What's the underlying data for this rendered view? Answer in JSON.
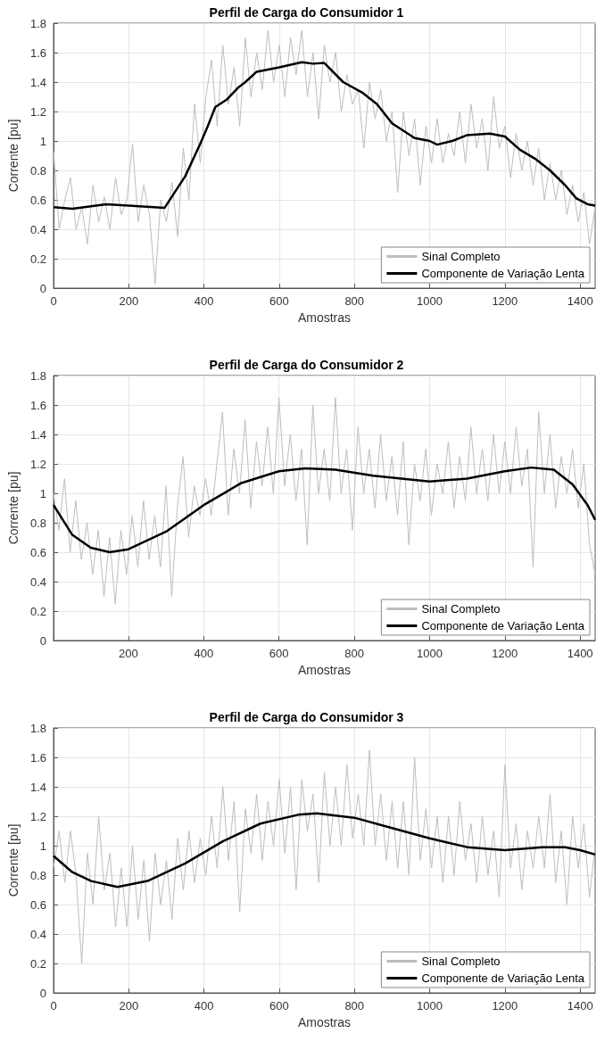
{
  "chart_data": [
    {
      "type": "line",
      "title": "Perfil de Carga do Consumidor 1",
      "xlabel": "Amostras",
      "ylabel": "Corrente [pu]",
      "xlim": [
        0,
        1440
      ],
      "xticks": [
        0,
        200,
        400,
        600,
        800,
        1000,
        1200,
        1400
      ],
      "ylim": [
        0,
        1.8
      ],
      "yticks": [
        0,
        0.2,
        0.4,
        0.6,
        0.8,
        1,
        1.2,
        1.4,
        1.6,
        1.8
      ],
      "grid": true,
      "legend": "bottom right",
      "marker": "none",
      "series": [
        {
          "name": "Sinal Completo",
          "color": "#bdbdbd",
          "x": [
            0,
            15,
            30,
            45,
            60,
            75,
            90,
            105,
            120,
            135,
            150,
            165,
            180,
            195,
            210,
            225,
            240,
            255,
            270,
            285,
            300,
            315,
            330,
            345,
            360,
            375,
            390,
            405,
            420,
            435,
            450,
            465,
            480,
            495,
            510,
            525,
            540,
            555,
            570,
            585,
            600,
            615,
            630,
            645,
            660,
            675,
            690,
            705,
            720,
            735,
            750,
            765,
            780,
            795,
            810,
            825,
            840,
            855,
            870,
            885,
            900,
            915,
            930,
            945,
            960,
            975,
            990,
            1005,
            1020,
            1035,
            1050,
            1065,
            1080,
            1095,
            1110,
            1125,
            1140,
            1155,
            1170,
            1185,
            1200,
            1215,
            1230,
            1245,
            1260,
            1275,
            1290,
            1305,
            1320,
            1335,
            1350,
            1365,
            1380,
            1395,
            1410,
            1425,
            1440
          ],
          "values": [
            0.93,
            0.4,
            0.6,
            0.75,
            0.4,
            0.55,
            0.3,
            0.7,
            0.45,
            0.62,
            0.4,
            0.75,
            0.5,
            0.6,
            0.98,
            0.45,
            0.7,
            0.5,
            0.03,
            0.6,
            0.45,
            0.72,
            0.35,
            0.95,
            0.6,
            1.25,
            0.85,
            1.3,
            1.55,
            1.1,
            1.65,
            1.25,
            1.5,
            1.1,
            1.7,
            1.3,
            1.6,
            1.35,
            1.75,
            1.4,
            1.65,
            1.3,
            1.7,
            1.45,
            1.75,
            1.3,
            1.6,
            1.15,
            1.65,
            1.4,
            1.6,
            1.2,
            1.45,
            1.25,
            1.35,
            0.95,
            1.4,
            1.15,
            1.35,
            1.0,
            1.2,
            0.65,
            1.2,
            0.9,
            1.15,
            0.7,
            1.1,
            0.85,
            1.15,
            0.85,
            1.05,
            0.9,
            1.2,
            0.85,
            1.25,
            0.95,
            1.15,
            0.8,
            1.3,
            0.95,
            1.1,
            0.75,
            1.05,
            0.8,
            1.0,
            0.7,
            0.95,
            0.6,
            0.85,
            0.6,
            0.8,
            0.5,
            0.7,
            0.45,
            0.65,
            0.3,
            0.55
          ]
        },
        {
          "name": "Componente de Variação Lenta",
          "color": "#000000",
          "x": [
            0,
            50,
            140,
            200,
            295,
            350,
            390,
            410,
            430,
            460,
            490,
            510,
            540,
            600,
            660,
            690,
            720,
            770,
            820,
            860,
            900,
            960,
            1000,
            1020,
            1060,
            1100,
            1160,
            1200,
            1240,
            1280,
            1320,
            1360,
            1390,
            1420,
            1440
          ],
          "values": [
            0.55,
            0.54,
            0.57,
            0.56,
            0.545,
            0.76,
            0.98,
            1.1,
            1.23,
            1.28,
            1.36,
            1.4,
            1.47,
            1.5,
            1.535,
            1.525,
            1.53,
            1.4,
            1.33,
            1.25,
            1.12,
            1.02,
            1.0,
            0.975,
            1.0,
            1.04,
            1.05,
            1.03,
            0.94,
            0.88,
            0.8,
            0.7,
            0.61,
            0.57,
            0.56
          ]
        }
      ]
    },
    {
      "type": "line",
      "title": "Perfil de Carga do Consumidor 2",
      "xlabel": "Amostras",
      "ylabel": "Corrente [pu]",
      "xlim": [
        1,
        1440
      ],
      "xticks": [
        200,
        400,
        600,
        800,
        1000,
        1200,
        1400
      ],
      "ylim": [
        0,
        1.8
      ],
      "yticks": [
        0,
        0.2,
        0.4,
        0.6,
        0.8,
        1,
        1.2,
        1.4,
        1.6,
        1.8
      ],
      "grid": true,
      "legend": "bottom right",
      "marker": "none",
      "series": [
        {
          "name": "Sinal Completo",
          "color": "#bdbdbd",
          "x": [
            1,
            15,
            30,
            45,
            60,
            75,
            90,
            105,
            120,
            135,
            150,
            165,
            180,
            195,
            210,
            225,
            240,
            255,
            270,
            285,
            300,
            315,
            330,
            345,
            360,
            375,
            390,
            405,
            420,
            435,
            450,
            465,
            480,
            495,
            510,
            525,
            540,
            555,
            570,
            585,
            600,
            615,
            630,
            645,
            660,
            675,
            690,
            705,
            720,
            735,
            750,
            765,
            780,
            795,
            810,
            825,
            840,
            855,
            870,
            885,
            900,
            915,
            930,
            945,
            960,
            975,
            990,
            1005,
            1020,
            1035,
            1050,
            1065,
            1080,
            1095,
            1110,
            1125,
            1140,
            1155,
            1170,
            1185,
            1200,
            1215,
            1230,
            1245,
            1260,
            1275,
            1290,
            1305,
            1320,
            1335,
            1350,
            1365,
            1380,
            1395,
            1410,
            1425,
            1440
          ],
          "values": [
            1.0,
            0.75,
            1.1,
            0.6,
            0.95,
            0.55,
            0.8,
            0.45,
            0.75,
            0.3,
            0.7,
            0.25,
            0.75,
            0.45,
            0.85,
            0.5,
            0.95,
            0.55,
            0.85,
            0.5,
            1.05,
            0.3,
            0.9,
            1.25,
            0.7,
            1.05,
            0.85,
            1.1,
            0.85,
            1.2,
            1.55,
            0.85,
            1.3,
            1.0,
            1.5,
            0.9,
            1.35,
            1.05,
            1.45,
            1.0,
            1.65,
            1.05,
            1.4,
            0.95,
            1.3,
            0.65,
            1.6,
            1.0,
            1.3,
            0.95,
            1.65,
            1.0,
            1.3,
            0.75,
            1.45,
            1.0,
            1.3,
            0.9,
            1.4,
            0.95,
            1.25,
            0.85,
            1.35,
            0.65,
            1.2,
            0.95,
            1.3,
            0.85,
            1.2,
            1.0,
            1.35,
            0.9,
            1.25,
            0.95,
            1.45,
            1.0,
            1.3,
            0.95,
            1.4,
            1.0,
            1.35,
            1.0,
            1.45,
            1.05,
            1.3,
            0.5,
            1.55,
            1.0,
            1.4,
            0.9,
            1.25,
            1.0,
            1.3,
            0.9,
            1.2,
            0.65,
            0.45
          ]
        },
        {
          "name": "Componente de Variação Lenta",
          "color": "#000000",
          "x": [
            1,
            50,
            100,
            150,
            200,
            300,
            400,
            500,
            600,
            670,
            750,
            850,
            1000,
            1100,
            1200,
            1270,
            1330,
            1380,
            1420,
            1440
          ],
          "values": [
            0.92,
            0.72,
            0.63,
            0.6,
            0.62,
            0.74,
            0.92,
            1.07,
            1.15,
            1.17,
            1.16,
            1.12,
            1.08,
            1.1,
            1.15,
            1.175,
            1.16,
            1.06,
            0.92,
            0.82
          ]
        }
      ]
    },
    {
      "type": "line",
      "title": "Perfil de Carga do Consumidor 3",
      "xlabel": "Amostras",
      "ylabel": "Corrente [pu]",
      "xlim": [
        0,
        1440
      ],
      "xticks": [
        0,
        200,
        400,
        600,
        800,
        1000,
        1200,
        1400
      ],
      "ylim": [
        0,
        1.8
      ],
      "yticks": [
        0,
        0.2,
        0.4,
        0.6,
        0.8,
        1,
        1.2,
        1.4,
        1.6,
        1.8
      ],
      "grid": true,
      "legend": "bottom right",
      "marker": "none",
      "series": [
        {
          "name": "Sinal Completo",
          "color": "#bdbdbd",
          "x": [
            0,
            15,
            30,
            45,
            60,
            75,
            90,
            105,
            120,
            135,
            150,
            165,
            180,
            195,
            210,
            225,
            240,
            255,
            270,
            285,
            300,
            315,
            330,
            345,
            360,
            375,
            390,
            405,
            420,
            435,
            450,
            465,
            480,
            495,
            510,
            525,
            540,
            555,
            570,
            585,
            600,
            615,
            630,
            645,
            660,
            675,
            690,
            705,
            720,
            735,
            750,
            765,
            780,
            795,
            810,
            825,
            840,
            855,
            870,
            885,
            900,
            915,
            930,
            945,
            960,
            975,
            990,
            1005,
            1020,
            1035,
            1050,
            1065,
            1080,
            1095,
            1110,
            1125,
            1140,
            1155,
            1170,
            1185,
            1200,
            1215,
            1230,
            1245,
            1260,
            1275,
            1290,
            1305,
            1320,
            1335,
            1350,
            1365,
            1380,
            1395,
            1410,
            1425,
            1440
          ],
          "values": [
            0.85,
            1.1,
            0.75,
            1.1,
            0.8,
            0.2,
            0.95,
            0.6,
            1.2,
            0.7,
            0.95,
            0.45,
            0.85,
            0.45,
            1.0,
            0.5,
            0.9,
            0.35,
            0.95,
            0.6,
            0.9,
            0.5,
            1.05,
            0.7,
            1.1,
            0.75,
            1.05,
            0.8,
            1.2,
            0.85,
            1.4,
            0.9,
            1.3,
            0.55,
            1.25,
            0.95,
            1.35,
            0.9,
            1.3,
            1.0,
            1.45,
            0.95,
            1.4,
            0.7,
            1.45,
            1.1,
            1.35,
            0.75,
            1.5,
            1.0,
            1.4,
            1.0,
            1.55,
            1.05,
            1.35,
            1.0,
            1.65,
            1.0,
            1.35,
            0.9,
            1.3,
            0.85,
            1.3,
            0.8,
            1.6,
            0.9,
            1.25,
            0.85,
            1.2,
            0.75,
            1.2,
            0.8,
            1.3,
            0.9,
            1.15,
            0.75,
            1.2,
            0.8,
            1.1,
            0.65,
            1.55,
            0.85,
            1.15,
            0.7,
            1.1,
            0.85,
            1.2,
            0.85,
            1.35,
            0.75,
            1.1,
            0.6,
            1.2,
            0.85,
            1.15,
            0.65,
            1.0
          ]
        },
        {
          "name": "Componente de Variação Lenta",
          "color": "#000000",
          "x": [
            0,
            50,
            100,
            170,
            250,
            350,
            450,
            550,
            650,
            700,
            800,
            900,
            1000,
            1100,
            1200,
            1300,
            1360,
            1400,
            1440
          ],
          "values": [
            0.93,
            0.82,
            0.76,
            0.72,
            0.76,
            0.88,
            1.03,
            1.15,
            1.21,
            1.22,
            1.19,
            1.12,
            1.05,
            0.99,
            0.97,
            0.99,
            0.99,
            0.97,
            0.94
          ]
        }
      ]
    }
  ]
}
